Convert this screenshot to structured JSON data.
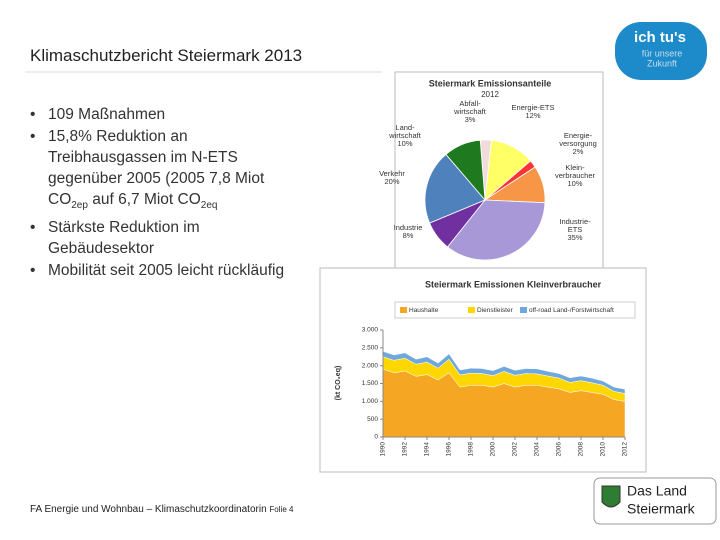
{
  "slide": {
    "title": "Klimaschutzbericht Steiermark 2013",
    "bullets": [
      [
        "109 Maßnahmen"
      ],
      [
        "15,8% Reduktion an Treibhausgassen im N-ETS gegenüber 2005 (2005 7,8 Miot CO",
        {
          "sub": "2ep"
        },
        " auf 6,7 Miot CO",
        {
          "sub": "2eq"
        }
      ],
      [
        "Stärkste Reduktion im Gebäudesektor"
      ],
      [
        "Mobilität seit 2005 leicht rückläufig"
      ]
    ],
    "footer": "FA Energie und Wohnbau – Klimaschutzkoordinatorin",
    "footer_page": "Folie 4",
    "logo_top": [
      "ich tu's",
      "für unsere",
      "Zukunft"
    ],
    "logo_bottom": [
      "Das Land",
      "Steiermark"
    ]
  },
  "chart_data": [
    {
      "type": "pie",
      "title": "Steiermark Emissionsanteile",
      "subtitle": "2012",
      "categories": [
        "Abfall-\nwirtschaft",
        "Energie-ETS",
        "Energie-\nversorgung",
        "Klein-\nverbraucher",
        "Industrie-\nETS",
        "Industrie",
        "Verkehr",
        "Land-\nwirtschaft"
      ],
      "values": [
        3,
        12,
        2,
        10,
        35,
        8,
        20,
        10
      ],
      "value_labels": [
        "3%",
        "12%",
        "2%",
        "10%",
        "35%",
        "8%",
        "20%",
        "10%"
      ],
      "colors": [
        "#f2dcdb",
        "#ffff66",
        "#ff3333",
        "#f79646",
        "#a898d8",
        "#7030a0",
        "#4f81bd",
        "#1f7a1f"
      ]
    },
    {
      "type": "stacked-area",
      "title": "Steiermark Emissionen Kleinverbraucher",
      "y_label": "(kt CO₂eq)",
      "x": [
        1990,
        1991,
        1992,
        1993,
        1994,
        1995,
        1996,
        1997,
        1998,
        1999,
        2000,
        2001,
        2002,
        2003,
        2004,
        2005,
        2006,
        2007,
        2008,
        2009,
        2010,
        2011,
        2012
      ],
      "xlim": [
        1990,
        2012
      ],
      "xticks": [
        1990,
        1992,
        1994,
        1996,
        1998,
        2000,
        2002,
        2004,
        2006,
        2008,
        2010,
        2012
      ],
      "ylim": [
        0,
        3000
      ],
      "yticks": [
        {
          "value": 0,
          "label": "0"
        },
        {
          "value": 500,
          "label": "500"
        },
        {
          "value": 1000,
          "label": "1.000"
        },
        {
          "value": 1500,
          "label": "1.500"
        },
        {
          "value": 2000,
          "label": "2.000"
        },
        {
          "value": 2500,
          "label": "2.500"
        },
        {
          "value": 3000,
          "label": "3.000"
        }
      ],
      "grid": false,
      "series": [
        {
          "name": "Haushalte",
          "color": "#f5a623",
          "values": [
            1900,
            1800,
            1850,
            1700,
            1750,
            1600,
            1800,
            1400,
            1450,
            1450,
            1400,
            1500,
            1400,
            1450,
            1450,
            1400,
            1350,
            1250,
            1300,
            1250,
            1200,
            1050,
            1000
          ]
        },
        {
          "name": "Dienstleister",
          "color": "#ffd700",
          "values": [
            350,
            350,
            360,
            340,
            350,
            330,
            380,
            340,
            340,
            330,
            320,
            340,
            330,
            330,
            320,
            310,
            300,
            280,
            280,
            270,
            250,
            230,
            220
          ]
        },
        {
          "name": "off-road Land-/Forstwirtschaft",
          "color": "#6fa8dc",
          "values": [
            150,
            150,
            150,
            140,
            150,
            140,
            150,
            140,
            140,
            140,
            140,
            140,
            140,
            140,
            140,
            130,
            130,
            130,
            130,
            130,
            120,
            120,
            120
          ]
        }
      ]
    }
  ]
}
